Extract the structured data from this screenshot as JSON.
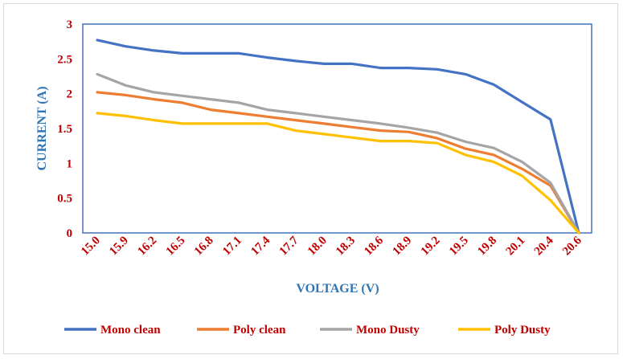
{
  "chart_data": {
    "type": "line",
    "xlabel": "VOLTAGE (V)",
    "ylabel": "CURRENT (A)",
    "ylim": [
      0,
      3
    ],
    "yticks": [
      "0",
      "0.5",
      "1",
      "1.5",
      "2",
      "2.5",
      "3"
    ],
    "categories": [
      "15.0",
      "15.9",
      "16.2",
      "16.5",
      "16.8",
      "17.1",
      "17.4",
      "17.7",
      "18.0",
      "18.3",
      "18.6",
      "18.9",
      "19.2",
      "19.5",
      "19.8",
      "20.1",
      "20.4",
      "20.6"
    ],
    "grid": false,
    "legend_position": "bottom",
    "series": [
      {
        "name": "Mono clean",
        "color": "#4472c4",
        "values": [
          2.77,
          2.68,
          2.62,
          2.58,
          2.58,
          2.58,
          2.52,
          2.47,
          2.43,
          2.43,
          2.37,
          2.37,
          2.35,
          2.28,
          2.13,
          1.88,
          1.63,
          0.0
        ]
      },
      {
        "name": "Poly clean",
        "color": "#ed7d31",
        "values": [
          2.02,
          1.98,
          1.92,
          1.87,
          1.77,
          1.72,
          1.67,
          1.62,
          1.57,
          1.52,
          1.47,
          1.45,
          1.36,
          1.21,
          1.12,
          0.92,
          0.68,
          0.0
        ]
      },
      {
        "name": "Mono Dusty",
        "color": "#a5a5a5",
        "values": [
          2.28,
          2.12,
          2.02,
          1.97,
          1.92,
          1.87,
          1.77,
          1.72,
          1.67,
          1.62,
          1.57,
          1.51,
          1.44,
          1.31,
          1.22,
          1.02,
          0.72,
          0.0
        ]
      },
      {
        "name": "Poly Dusty",
        "color": "#ffc000",
        "values": [
          1.72,
          1.68,
          1.62,
          1.57,
          1.57,
          1.57,
          1.57,
          1.47,
          1.42,
          1.37,
          1.32,
          1.32,
          1.29,
          1.12,
          1.02,
          0.82,
          0.47,
          0.0
        ]
      }
    ]
  }
}
